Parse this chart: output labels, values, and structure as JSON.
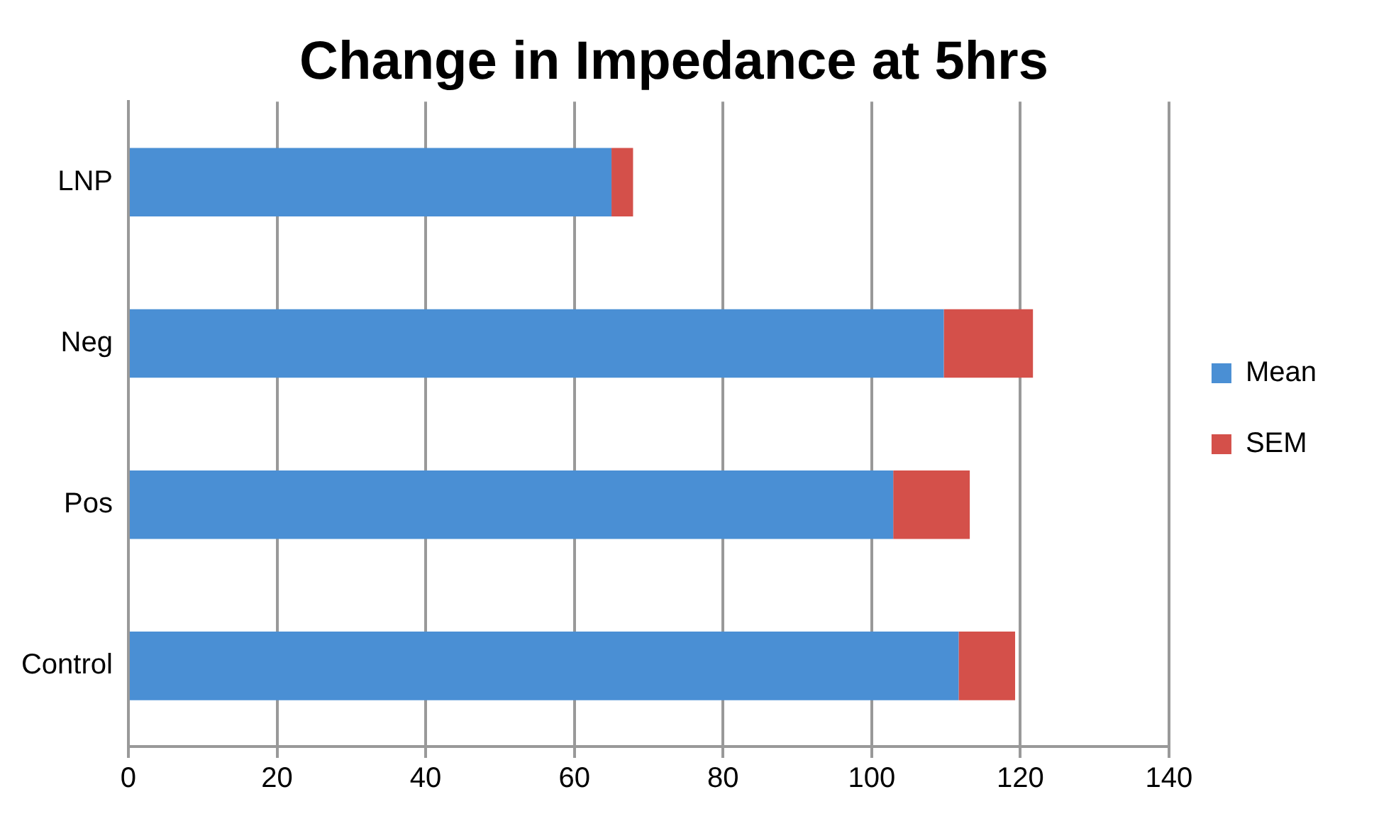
{
  "chart_data": {
    "type": "bar",
    "title": "Change in Impedance at 5hrs",
    "orientation": "horizontal",
    "stacked": true,
    "categories": [
      "LNP",
      "Neg",
      "Pos",
      "Control"
    ],
    "series": [
      {
        "name": "Mean",
        "color": "#4a8fd4",
        "values": [
          65,
          109.7,
          102.9,
          111.7
        ]
      },
      {
        "name": "SEM",
        "color": "#d4504a",
        "values": [
          2.9,
          12,
          10.3,
          7.6
        ]
      }
    ],
    "xlim": [
      0,
      140
    ],
    "xticks": [
      0,
      20,
      40,
      60,
      80,
      100,
      120,
      140
    ],
    "grid": "x",
    "legend": "right"
  }
}
